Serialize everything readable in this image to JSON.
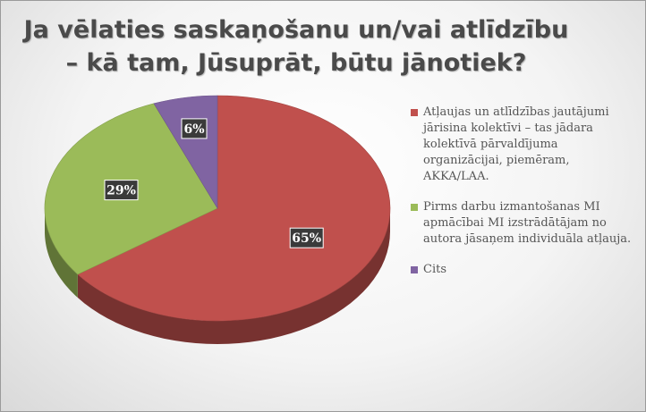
{
  "title_lines": [
    "Ja vēlaties saskaņošanu un/vai atlīdzību",
    "– kā tam, Jūsuprāt, būtu jānotiek?"
  ],
  "chart_data": {
    "type": "pie",
    "title": "Ja vēlaties saskaņošanu un/vai atlīdzību – kā tam, Jūsuprāt, būtu jānotiek?",
    "legend_position": "right",
    "series": [
      {
        "label": "Atļaujas un atlīdzības jautājumi jārisina kolektīvi – tas jādara kolektīvā pārvaldījuma organizācijai, piemēram, AKKA/LAA.",
        "value": 65,
        "data_label": "65%",
        "color": "#c0504d"
      },
      {
        "label": "Pirms darbu izmantošanas MI apmācībai MI izstrādātājam no autora jāsaņem individuāla atļauja.",
        "value": 29,
        "data_label": "29%",
        "color": "#9bbb59"
      },
      {
        "label": "Cits",
        "value": 6,
        "data_label": "6%",
        "color": "#8064a2"
      }
    ]
  }
}
